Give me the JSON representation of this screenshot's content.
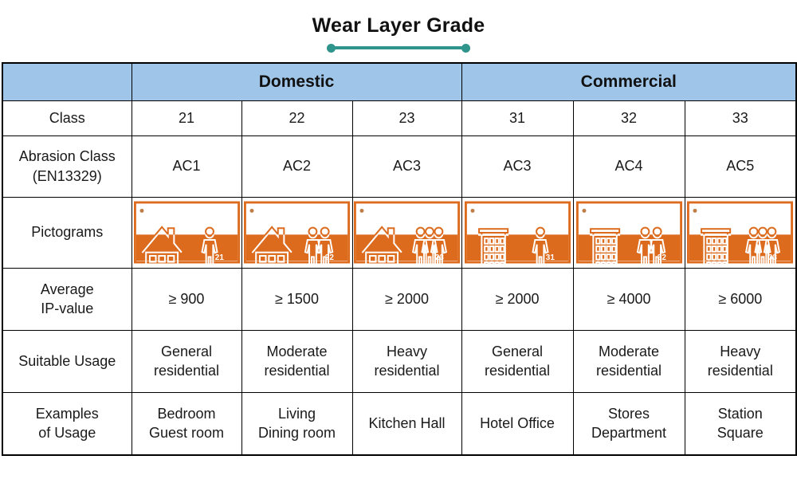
{
  "page": {
    "title": "Wear Layer Grade"
  },
  "colors": {
    "accent": "#2e948c",
    "header_bg": "#9fc5e8",
    "pictogram_orange": "#dc6b1e",
    "border": "#000000"
  },
  "table": {
    "groups": {
      "domestic": "Domestic",
      "commercial": "Commercial"
    },
    "row_labels": {
      "class": "Class",
      "abrasion": "Abrasion Class\n(EN13329)",
      "pictograms": "Pictograms",
      "ip": "Average\nIP-value",
      "suitable": "Suitable Usage",
      "examples": "Examples\nof Usage"
    },
    "columns": [
      {
        "class": "21",
        "abrasion": "AC1",
        "pictogram": {
          "icon": "house-1-person-icon",
          "type": "house",
          "persons": 1,
          "number": "21"
        },
        "ip": "≥ 900",
        "suitable": "General\nresidential",
        "examples": "Bedroom\nGuest room"
      },
      {
        "class": "22",
        "abrasion": "AC2",
        "pictogram": {
          "icon": "house-2-persons-icon",
          "type": "house",
          "persons": 2,
          "number": "22"
        },
        "ip": "≥ 1500",
        "suitable": "Moderate\nresidential",
        "examples": "Living\nDining room"
      },
      {
        "class": "23",
        "abrasion": "AC3",
        "pictogram": {
          "icon": "house-3-persons-icon",
          "type": "house",
          "persons": 3,
          "number": "23"
        },
        "ip": "≥ 2000",
        "suitable": "Heavy\nresidential",
        "examples": "Kitchen Hall"
      },
      {
        "class": "31",
        "abrasion": "AC3",
        "pictogram": {
          "icon": "building-1-person-icon",
          "type": "building",
          "persons": 1,
          "number": "31"
        },
        "ip": "≥ 2000",
        "suitable": "General\nresidential",
        "examples": "Hotel Office"
      },
      {
        "class": "32",
        "abrasion": "AC4",
        "pictogram": {
          "icon": "building-2-persons-icon",
          "type": "building",
          "persons": 2,
          "number": "32"
        },
        "ip": "≥ 4000",
        "suitable": "Moderate\nresidential",
        "examples": "Stores\nDepartment"
      },
      {
        "class": "33",
        "abrasion": "AC5",
        "pictogram": {
          "icon": "building-3-persons-icon",
          "type": "building",
          "persons": 3,
          "number": "33"
        },
        "ip": "≥ 6000",
        "suitable": "Heavy\nresidential",
        "examples": "Station\nSquare"
      }
    ]
  }
}
